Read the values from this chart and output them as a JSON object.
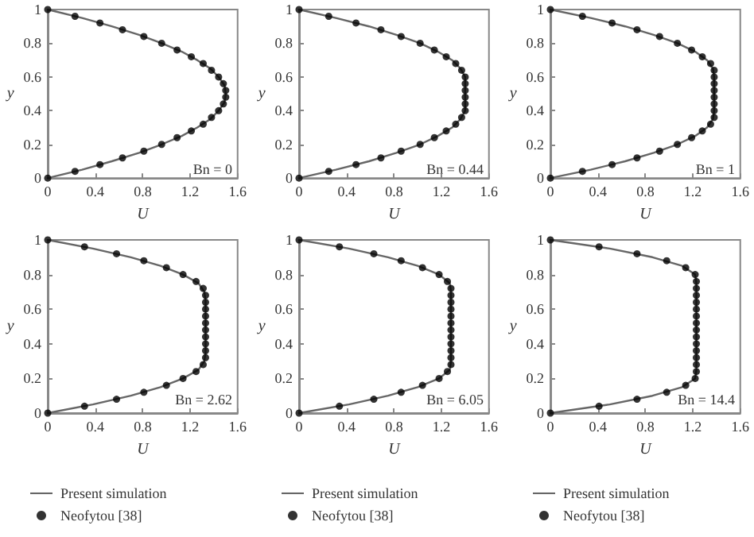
{
  "chart_data": [
    {
      "type": "line",
      "xlabel": "U",
      "ylabel": "y",
      "annotations": [
        "Bn = 0"
      ],
      "xlim": [
        0,
        1.6
      ],
      "xticks": [
        0,
        0.4,
        0.8,
        1.2,
        1.6
      ],
      "ylim": [
        0,
        1
      ],
      "yticks": [
        0,
        0.2,
        0.4,
        0.6,
        0.8,
        1
      ],
      "grid": false,
      "series": [
        {
          "color": "#666666",
          "marker": "none",
          "line_style": "solid",
          "x": [
            0,
            0.29,
            0.54,
            0.77,
            0.96,
            1.13,
            1.26,
            1.37,
            1.44,
            1.49,
            1.5,
            1.49,
            1.44,
            1.37,
            1.26,
            1.13,
            0.96,
            0.77,
            0.54,
            0.29,
            0
          ],
          "values": [
            0,
            0.05,
            0.1,
            0.15,
            0.2,
            0.25,
            0.3,
            0.35,
            0.4,
            0.45,
            0.5,
            0.55,
            0.6,
            0.65,
            0.7,
            0.75,
            0.8,
            0.85,
            0.9,
            0.95,
            1
          ]
        },
        {
          "type": "scatter",
          "color": "#000000",
          "marker": "circle",
          "x": [
            0,
            0.23,
            0.44,
            0.63,
            0.81,
            0.96,
            1.09,
            1.21,
            1.31,
            1.38,
            1.44,
            1.48,
            1.5,
            1.5,
            1.48,
            1.44,
            1.38,
            1.31,
            1.21,
            1.09,
            0.96,
            0.81,
            0.63,
            0.44,
            0.23,
            0
          ],
          "values": [
            0,
            0.04,
            0.08,
            0.12,
            0.16,
            0.2,
            0.24,
            0.28,
            0.32,
            0.36,
            0.4,
            0.44,
            0.48,
            0.52,
            0.56,
            0.6,
            0.64,
            0.68,
            0.72,
            0.76,
            0.8,
            0.84,
            0.88,
            0.92,
            0.96,
            1
          ]
        }
      ]
    },
    {
      "type": "line",
      "xlabel": "U",
      "ylabel": "y",
      "annotations": [
        "Bn = 0.44"
      ],
      "xlim": [
        0,
        1.6
      ],
      "xticks": [
        0,
        0.4,
        0.8,
        1.2,
        1.6
      ],
      "ylim": [
        0,
        1
      ],
      "yticks": [
        0,
        0.2,
        0.4,
        0.6,
        0.8,
        1
      ],
      "grid": false,
      "series": [
        {
          "color": "#666666",
          "marker": "none",
          "line_style": "solid",
          "x": [
            0,
            0.31,
            0.59,
            0.82,
            1.02,
            1.17,
            1.29,
            1.36,
            1.4,
            1.4,
            1.4,
            1.4,
            1.4,
            1.36,
            1.29,
            1.17,
            1.02,
            0.82,
            0.59,
            0.31,
            0
          ],
          "values": [
            0,
            0.05,
            0.1,
            0.15,
            0.2,
            0.25,
            0.3,
            0.35,
            0.4,
            0.45,
            0.5,
            0.55,
            0.6,
            0.65,
            0.7,
            0.75,
            0.8,
            0.85,
            0.9,
            0.95,
            1
          ]
        },
        {
          "type": "scatter",
          "color": "#000000",
          "marker": "circle",
          "x": [
            0,
            0.25,
            0.48,
            0.69,
            0.86,
            1.02,
            1.14,
            1.24,
            1.32,
            1.37,
            1.4,
            1.4,
            1.4,
            1.4,
            1.4,
            1.4,
            1.37,
            1.32,
            1.24,
            1.14,
            1.02,
            0.86,
            0.69,
            0.48,
            0.25,
            0
          ],
          "values": [
            0,
            0.04,
            0.08,
            0.12,
            0.16,
            0.2,
            0.24,
            0.28,
            0.32,
            0.36,
            0.4,
            0.44,
            0.48,
            0.52,
            0.56,
            0.6,
            0.64,
            0.68,
            0.72,
            0.76,
            0.8,
            0.84,
            0.88,
            0.92,
            0.96,
            1
          ]
        }
      ]
    },
    {
      "type": "line",
      "xlabel": "U",
      "ylabel": "y",
      "annotations": [
        "Bn = 1"
      ],
      "xlim": [
        0,
        1.6
      ],
      "xticks": [
        0,
        0.4,
        0.8,
        1.2,
        1.6
      ],
      "ylim": [
        0,
        1
      ],
      "yticks": [
        0,
        0.2,
        0.4,
        0.6,
        0.8,
        1
      ],
      "grid": false,
      "series": [
        {
          "color": "#666666",
          "marker": "none",
          "line_style": "solid",
          "x": [
            0,
            0.34,
            0.63,
            0.87,
            1.07,
            1.22,
            1.32,
            1.37,
            1.38,
            1.38,
            1.38,
            1.38,
            1.38,
            1.37,
            1.32,
            1.22,
            1.07,
            0.87,
            0.63,
            0.34,
            0
          ],
          "values": [
            0,
            0.05,
            0.1,
            0.15,
            0.2,
            0.25,
            0.3,
            0.35,
            0.4,
            0.45,
            0.5,
            0.55,
            0.6,
            0.65,
            0.7,
            0.75,
            0.8,
            0.85,
            0.9,
            0.95,
            1
          ]
        },
        {
          "type": "scatter",
          "color": "#000000",
          "marker": "circle",
          "x": [
            0,
            0.27,
            0.52,
            0.73,
            0.92,
            1.07,
            1.19,
            1.28,
            1.35,
            1.38,
            1.38,
            1.38,
            1.38,
            1.38,
            1.38,
            1.38,
            1.38,
            1.35,
            1.28,
            1.19,
            1.07,
            0.92,
            0.73,
            0.52,
            0.27,
            0
          ],
          "values": [
            0,
            0.04,
            0.08,
            0.12,
            0.16,
            0.2,
            0.24,
            0.28,
            0.32,
            0.36,
            0.4,
            0.44,
            0.48,
            0.52,
            0.56,
            0.6,
            0.64,
            0.68,
            0.72,
            0.76,
            0.8,
            0.84,
            0.88,
            0.92,
            0.96,
            1
          ]
        }
      ]
    },
    {
      "type": "line",
      "xlabel": "U",
      "ylabel": "y",
      "annotations": [
        "Bn = 2.62"
      ],
      "xlim": [
        0,
        1.6
      ],
      "xticks": [
        0,
        0.4,
        0.8,
        1.2,
        1.6
      ],
      "ylim": [
        0,
        1
      ],
      "yticks": [
        0,
        0.2,
        0.4,
        0.6,
        0.8,
        1
      ],
      "grid": false,
      "legend": "bottom",
      "series": [
        {
          "name": "Present simulation",
          "color": "#666666",
          "marker": "none",
          "line_style": "solid",
          "x": [
            0,
            0.38,
            0.7,
            0.95,
            1.14,
            1.27,
            1.32,
            1.33,
            1.33,
            1.33,
            1.33,
            1.33,
            1.33,
            1.33,
            1.32,
            1.27,
            1.14,
            0.95,
            0.7,
            0.38,
            0
          ],
          "values": [
            0,
            0.05,
            0.1,
            0.15,
            0.2,
            0.25,
            0.3,
            0.35,
            0.4,
            0.45,
            0.5,
            0.55,
            0.6,
            0.65,
            0.7,
            0.75,
            0.8,
            0.85,
            0.9,
            0.95,
            1
          ]
        },
        {
          "type": "scatter",
          "name": "Neofytou [38]",
          "color": "#000000",
          "marker": "circle",
          "x": [
            0,
            0.31,
            0.58,
            0.81,
            1.0,
            1.14,
            1.25,
            1.31,
            1.33,
            1.33,
            1.33,
            1.33,
            1.33,
            1.33,
            1.33,
            1.33,
            1.33,
            1.33,
            1.31,
            1.25,
            1.14,
            1.0,
            0.81,
            0.58,
            0.31,
            0
          ],
          "values": [
            0,
            0.04,
            0.08,
            0.12,
            0.16,
            0.2,
            0.24,
            0.28,
            0.32,
            0.36,
            0.4,
            0.44,
            0.48,
            0.52,
            0.56,
            0.6,
            0.64,
            0.68,
            0.72,
            0.76,
            0.8,
            0.84,
            0.88,
            0.92,
            0.96,
            1
          ]
        }
      ]
    },
    {
      "type": "line",
      "xlabel": "U",
      "ylabel": "y",
      "annotations": [
        "Bn = 6.05"
      ],
      "xlim": [
        0,
        1.6
      ],
      "xticks": [
        0,
        0.4,
        0.8,
        1.2,
        1.6
      ],
      "ylim": [
        0,
        1
      ],
      "yticks": [
        0,
        0.2,
        0.4,
        0.6,
        0.8,
        1
      ],
      "grid": false,
      "legend": "bottom",
      "series": [
        {
          "name": "Present simulation",
          "color": "#666666",
          "marker": "none",
          "line_style": "solid",
          "x": [
            0,
            0.42,
            0.75,
            1.0,
            1.18,
            1.27,
            1.28,
            1.28,
            1.28,
            1.28,
            1.28,
            1.28,
            1.28,
            1.28,
            1.28,
            1.27,
            1.18,
            1.0,
            0.75,
            0.42,
            0
          ],
          "values": [
            0,
            0.05,
            0.1,
            0.15,
            0.2,
            0.25,
            0.3,
            0.35,
            0.4,
            0.45,
            0.5,
            0.55,
            0.6,
            0.65,
            0.7,
            0.75,
            0.8,
            0.85,
            0.9,
            0.95,
            1
          ]
        },
        {
          "type": "scatter",
          "name": "Neofytou [38]",
          "color": "#000000",
          "marker": "circle",
          "x": [
            0,
            0.34,
            0.63,
            0.86,
            1.04,
            1.18,
            1.25,
            1.28,
            1.28,
            1.28,
            1.28,
            1.28,
            1.28,
            1.28,
            1.28,
            1.28,
            1.28,
            1.28,
            1.28,
            1.25,
            1.18,
            1.04,
            0.86,
            0.63,
            0.34,
            0
          ],
          "values": [
            0,
            0.04,
            0.08,
            0.12,
            0.16,
            0.2,
            0.24,
            0.28,
            0.32,
            0.36,
            0.4,
            0.44,
            0.48,
            0.52,
            0.56,
            0.6,
            0.64,
            0.68,
            0.72,
            0.76,
            0.8,
            0.84,
            0.88,
            0.92,
            0.96,
            1
          ]
        }
      ]
    },
    {
      "type": "line",
      "xlabel": "U",
      "ylabel": "y",
      "annotations": [
        "Bn = 14.4"
      ],
      "xlim": [
        0,
        1.6
      ],
      "xticks": [
        0,
        0.4,
        0.8,
        1.2,
        1.6
      ],
      "ylim": [
        0,
        1
      ],
      "yticks": [
        0,
        0.2,
        0.4,
        0.6,
        0.8,
        1
      ],
      "grid": false,
      "legend": "bottom",
      "series": [
        {
          "name": "Present simulation",
          "color": "#666666",
          "marker": "none",
          "line_style": "solid",
          "x": [
            0,
            0.5,
            0.86,
            1.11,
            1.22,
            1.23,
            1.23,
            1.23,
            1.23,
            1.23,
            1.23,
            1.23,
            1.23,
            1.23,
            1.23,
            1.23,
            1.22,
            1.11,
            0.86,
            0.5,
            0
          ],
          "values": [
            0,
            0.05,
            0.1,
            0.15,
            0.2,
            0.25,
            0.3,
            0.35,
            0.4,
            0.45,
            0.5,
            0.55,
            0.6,
            0.65,
            0.7,
            0.75,
            0.8,
            0.85,
            0.9,
            0.95,
            1
          ]
        },
        {
          "type": "scatter",
          "name": "Neofytou [38]",
          "color": "#000000",
          "marker": "circle",
          "x": [
            0,
            0.41,
            0.73,
            0.98,
            1.14,
            1.22,
            1.23,
            1.23,
            1.23,
            1.23,
            1.23,
            1.23,
            1.23,
            1.23,
            1.23,
            1.23,
            1.23,
            1.23,
            1.23,
            1.23,
            1.22,
            1.14,
            0.98,
            0.73,
            0.41,
            0
          ],
          "values": [
            0,
            0.04,
            0.08,
            0.12,
            0.16,
            0.2,
            0.24,
            0.28,
            0.32,
            0.36,
            0.4,
            0.44,
            0.48,
            0.52,
            0.56,
            0.6,
            0.64,
            0.68,
            0.72,
            0.76,
            0.8,
            0.84,
            0.88,
            0.92,
            0.96,
            1
          ]
        }
      ]
    }
  ]
}
